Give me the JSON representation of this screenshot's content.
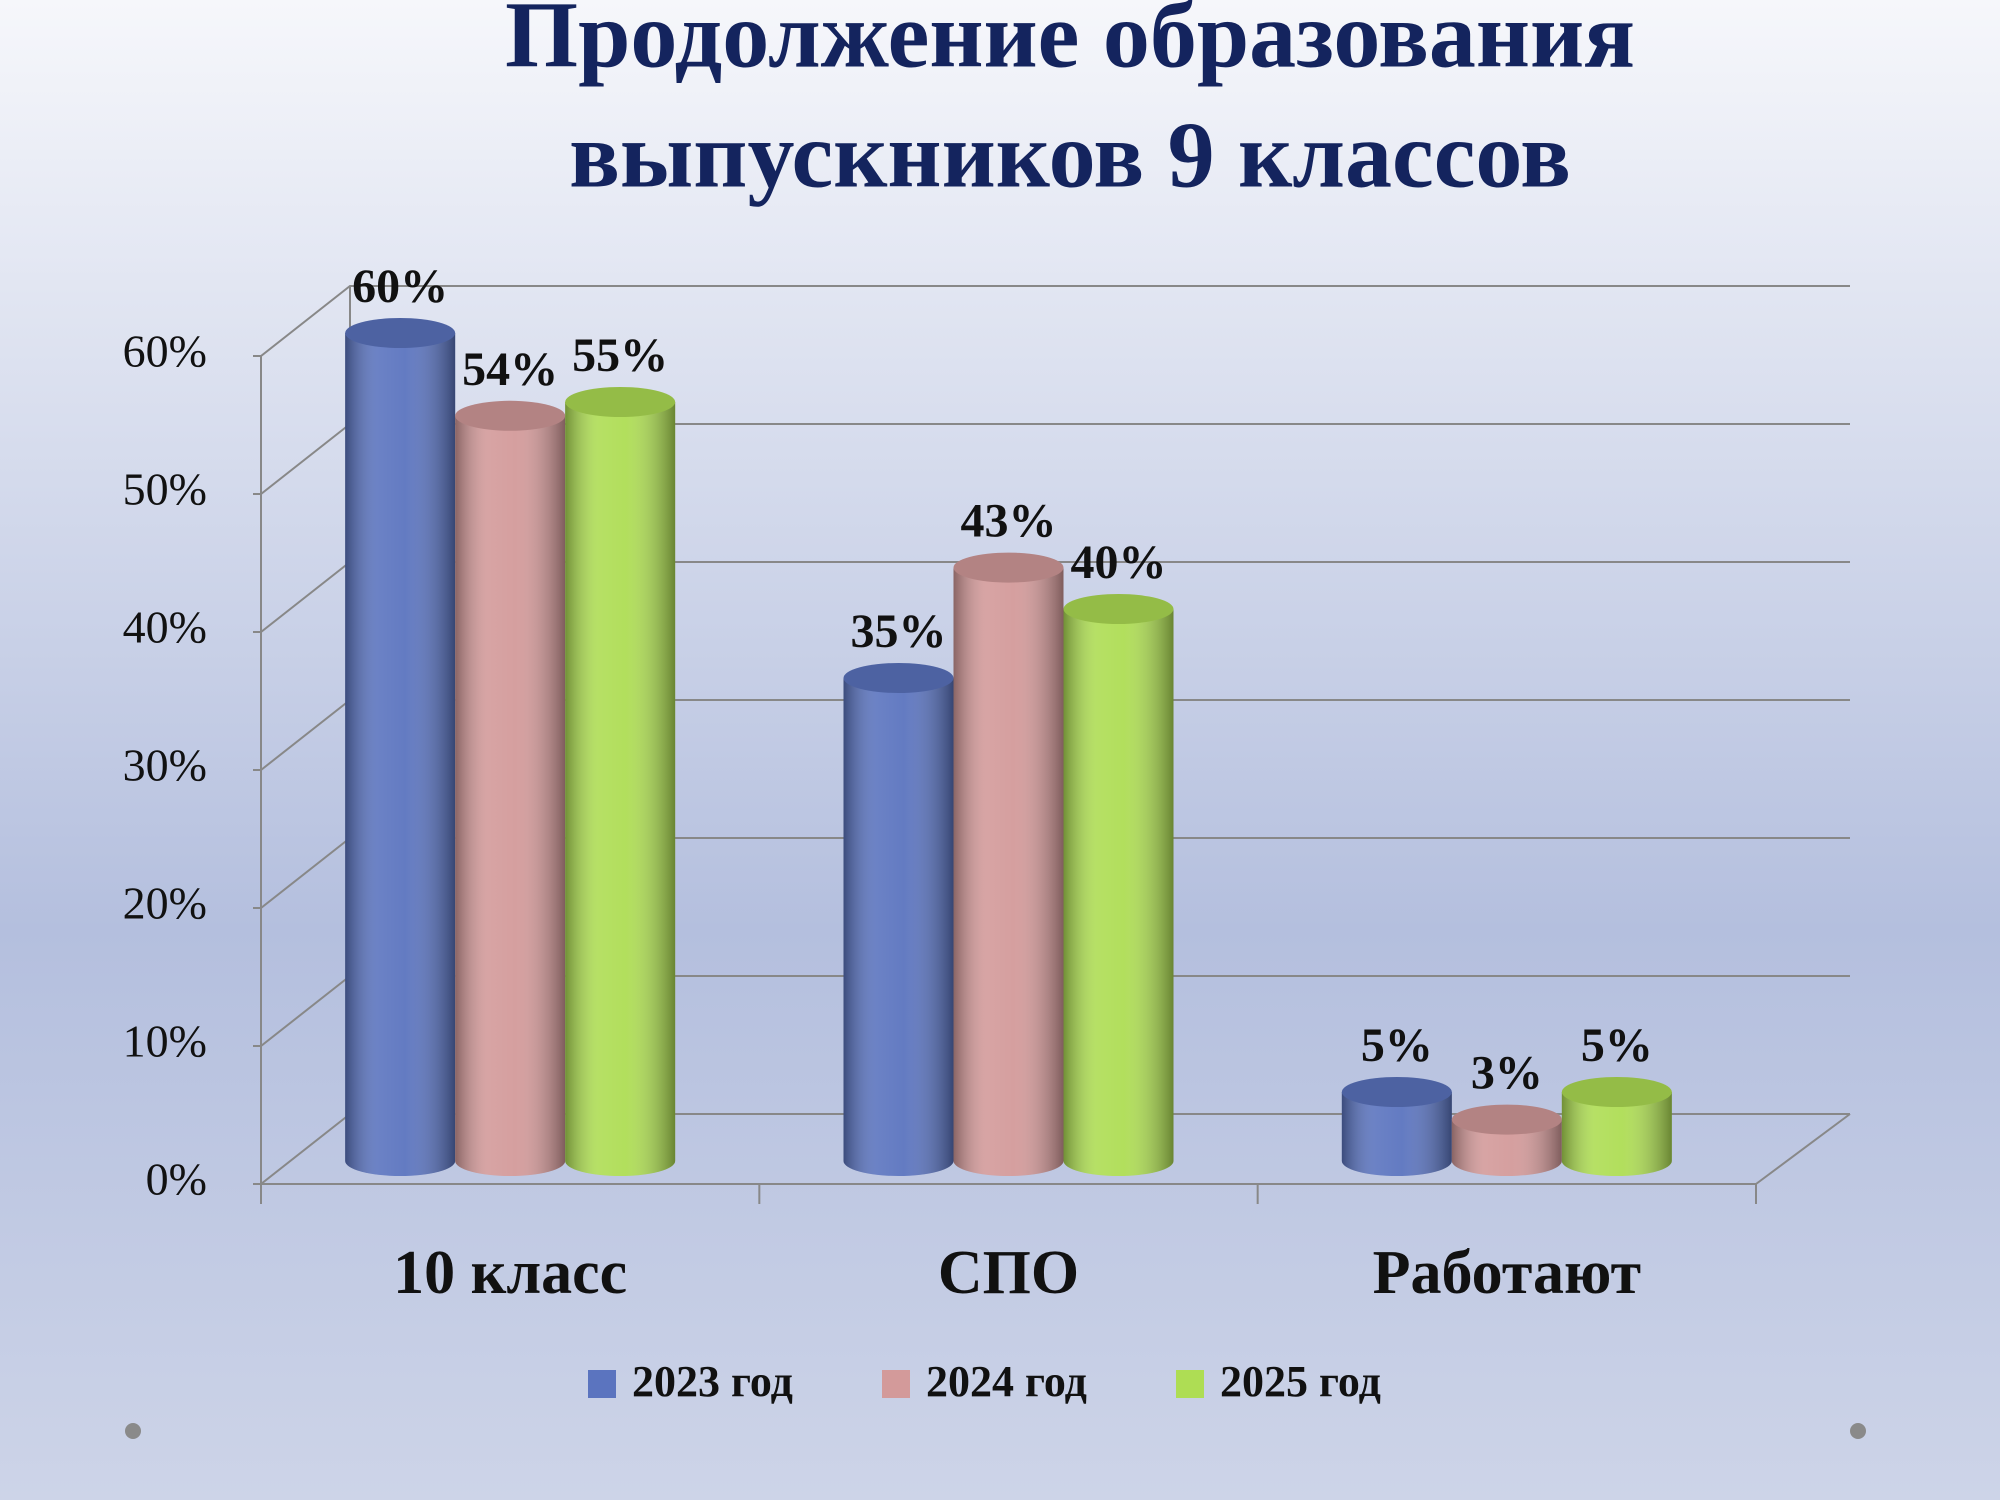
{
  "chart_data": {
    "type": "bar",
    "title": [
      "Продолжение образования",
      "выпускников 9 классов"
    ],
    "categories": [
      "10 класс",
      "СПО",
      "Работают"
    ],
    "series": [
      {
        "name": "2023 год",
        "color": "#5b74bf",
        "values": [
          60,
          35,
          5
        ],
        "value_labels": [
          "60%",
          "35%",
          "5%"
        ]
      },
      {
        "name": "2024 год",
        "color": "#d39a9a",
        "values": [
          54,
          43,
          3
        ],
        "value_labels": [
          "54%",
          "43%",
          "3%"
        ]
      },
      {
        "name": "2025 год",
        "color": "#aedd54",
        "values": [
          55,
          40,
          5
        ],
        "value_labels": [
          "55%",
          "40%",
          "5%"
        ]
      }
    ],
    "ylim": [
      0,
      60
    ],
    "yticks": [
      {
        "value": 0,
        "label": "0%"
      },
      {
        "value": 10,
        "label": "10%"
      },
      {
        "value": 20,
        "label": "20%"
      },
      {
        "value": 30,
        "label": "30%"
      },
      {
        "value": 40,
        "label": "40%"
      },
      {
        "value": 50,
        "label": "50%"
      },
      {
        "value": 60,
        "label": "60%"
      }
    ],
    "grid": true
  }
}
